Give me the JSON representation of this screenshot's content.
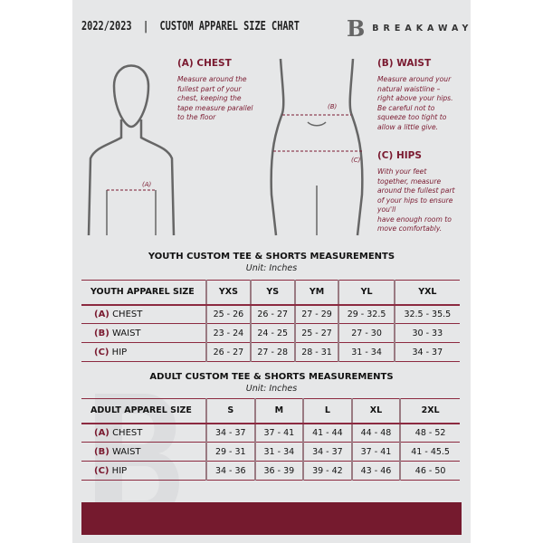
{
  "header": {
    "title": "2022/2023  |  CUSTOM APPAREL SIZE CHART",
    "logo_text": "BREAKAWAY",
    "logo_mark": "B"
  },
  "measures": {
    "chest": {
      "heading": "(A) CHEST",
      "text": "Measure around the\nfullest part of your\nchest, keeping the\ntape measure parallel\nto the floor",
      "marker": "(A)"
    },
    "waist": {
      "heading": "(B) WAIST",
      "text": "Measure around your\nnatural waistline –\nright above your hips.\nBe careful not to\nsqueeze too tight to\nallow a little give.",
      "marker": "(B)"
    },
    "hips": {
      "heading": "(C) HIPS",
      "text": "With your feet\ntogether, measure\naround the fullest part\nof your hips to ensure\nyou'll\nhave enough room to\nmove comfortably.",
      "marker": "(C)"
    }
  },
  "youth": {
    "title": "YOUTH CUSTOM TEE & SHORTS MEASUREMENTS",
    "unit": "Unit: Inches",
    "header": [
      "YOUTH APPAREL SIZE",
      "YXS",
      "YS",
      "YM",
      "YL",
      "YXL"
    ],
    "rows": [
      {
        "letter": "(A)",
        "label": "CHEST",
        "values": [
          "25 - 26",
          "26 - 27",
          "27 - 29",
          "29 - 32.5",
          "32.5 - 35.5"
        ]
      },
      {
        "letter": "(B)",
        "label": "WAIST",
        "values": [
          "23 - 24",
          "24 - 25",
          "25 - 27",
          "27 - 30",
          "30 - 33"
        ]
      },
      {
        "letter": "(C)",
        "label": "HIP",
        "values": [
          "26 - 27",
          "27 - 28",
          "28 - 31",
          "31 - 34",
          "34 - 37"
        ]
      }
    ]
  },
  "adult": {
    "title": "ADULT CUSTOM TEE & SHORTS MEASUREMENTS",
    "unit": "Unit: Inches",
    "header": [
      "ADULT APPAREL SIZE",
      "S",
      "M",
      "L",
      "XL",
      "2XL"
    ],
    "rows": [
      {
        "letter": "(A)",
        "label": "CHEST",
        "values": [
          "34 - 37",
          "37 - 41",
          "41 - 44",
          "44 - 48",
          "48 - 52"
        ]
      },
      {
        "letter": "(B)",
        "label": "WAIST",
        "values": [
          "29 - 31",
          "31 - 34",
          "34 - 37",
          "37 - 41",
          "41 - 45.5"
        ]
      },
      {
        "letter": "(C)",
        "label": "HIP",
        "values": [
          "34 - 36",
          "36 - 39",
          "39 - 42",
          "43 - 46",
          "46 - 50"
        ]
      }
    ]
  },
  "colors": {
    "accent": "#7a1a30",
    "background": "#e6e7e8",
    "band": "#751a2e"
  }
}
